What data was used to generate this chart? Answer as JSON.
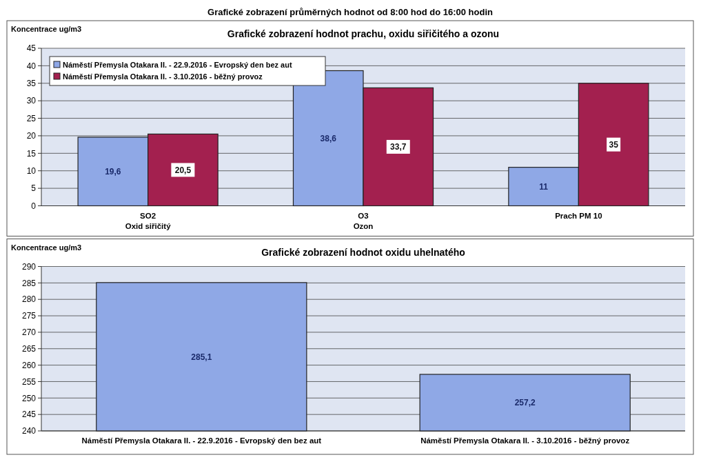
{
  "chart_data": [
    {
      "type": "bar",
      "title": "Grafické zobrazení hodnot prachu, oxidu siřičitého a ozonu",
      "ylabel": "Koncentrace ug/m3",
      "annotations": [
        "Grafické zobrazení průměrných hodnot od 8:00 hod do 16:00 hodin"
      ],
      "categories": [
        "SO2\nOxid siřičitý",
        "O3\nOzon",
        "Prach PM 10"
      ],
      "series": [
        {
          "name": "Náměstí Přemysla Otakara II. - 22.9.2016 - Evropský den bez aut",
          "color": "#8fa8e6",
          "values": [
            19.6,
            38.6,
            11
          ],
          "value_labels": [
            "19,6",
            "38,6",
            "11"
          ]
        },
        {
          "name": "Náměstí Přemysla Otakara II. - 3.10.2016 - běžný provoz",
          "color": "#a3204f",
          "values": [
            20.5,
            33.7,
            35
          ],
          "value_labels": [
            "20,5",
            "33,7",
            "35"
          ]
        }
      ],
      "ylim": [
        0,
        45
      ],
      "yticks": [
        0,
        5,
        10,
        15,
        20,
        25,
        30,
        35,
        40,
        45
      ],
      "grid": "y",
      "legend": "top left"
    },
    {
      "type": "bar",
      "title": "Grafické zobrazení hodnot oxidu uhelnatého",
      "ylabel": "Koncentrace ug/m3",
      "categories": [
        "Náměstí Přemysla Otakara II. - 22.9.2016 - Evropský den bez aut",
        "Náměstí Přemysla Otakara II. - 3.10.2016 - běžný provoz"
      ],
      "series": [
        {
          "color": "#8fa8e6",
          "values": [
            285.1,
            257.2
          ],
          "value_labels": [
            "285,1",
            "257,2"
          ]
        }
      ],
      "ylim": [
        240,
        290
      ],
      "yticks": [
        240,
        245,
        250,
        255,
        260,
        265,
        270,
        275,
        280,
        285,
        290
      ],
      "grid": "y",
      "legend": false
    }
  ]
}
